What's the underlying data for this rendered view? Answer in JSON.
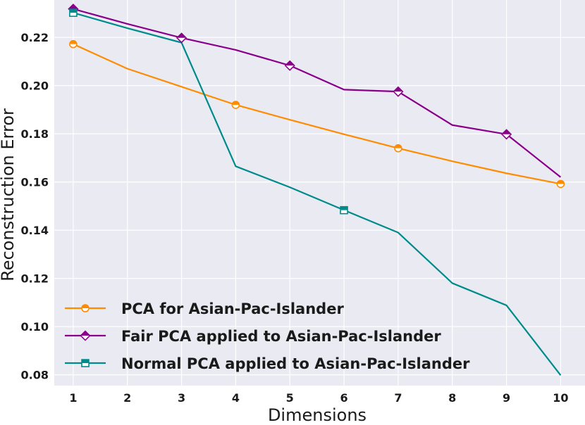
{
  "chart_data": {
    "type": "line",
    "title": "",
    "xlabel": "Dimensions",
    "ylabel": "Reconstruction Error",
    "x": [
      1,
      2,
      3,
      4,
      5,
      6,
      7,
      8,
      9,
      10
    ],
    "xlim": [
      0.65,
      10.45
    ],
    "ylim": [
      0.0755,
      0.2355
    ],
    "xticks": [
      "1",
      "2",
      "3",
      "4",
      "5",
      "6",
      "7",
      "8",
      "9",
      "10"
    ],
    "yticks": [
      0.08,
      0.1,
      0.12,
      0.14,
      0.16,
      0.18,
      0.2,
      0.22
    ],
    "ytick_labels": [
      "0.08",
      "0.10",
      "0.12",
      "0.14",
      "0.16",
      "0.18",
      "0.20",
      "0.22"
    ],
    "grid": true,
    "legend_position": "bottom-left",
    "series": [
      {
        "name": "PCA for Asian-Pac-Islander",
        "color": "#ff8c00",
        "marker": "circle",
        "marker_every": 3,
        "values": [
          0.2172,
          0.207,
          0.1995,
          0.192,
          0.1858,
          0.1798,
          0.174,
          0.1686,
          0.1636,
          0.1592
        ]
      },
      {
        "name": "Fair PCA applied to Asian-Pac-Islander",
        "color": "#8b008b",
        "marker": "diamond",
        "marker_every": 2,
        "values": [
          0.2318,
          0.2256,
          0.2198,
          0.2148,
          0.2083,
          0.1983,
          0.1975,
          0.1836,
          0.1798,
          0.162
        ]
      },
      {
        "name": "Normal PCA applied to Asian-Pac-Islander",
        "color": "#008b8b",
        "marker": "square",
        "marker_every": 5,
        "values": [
          0.2302,
          0.2238,
          0.2178,
          0.1665,
          0.1578,
          0.1483,
          0.139,
          0.118,
          0.1088,
          0.0798
        ]
      }
    ]
  }
}
